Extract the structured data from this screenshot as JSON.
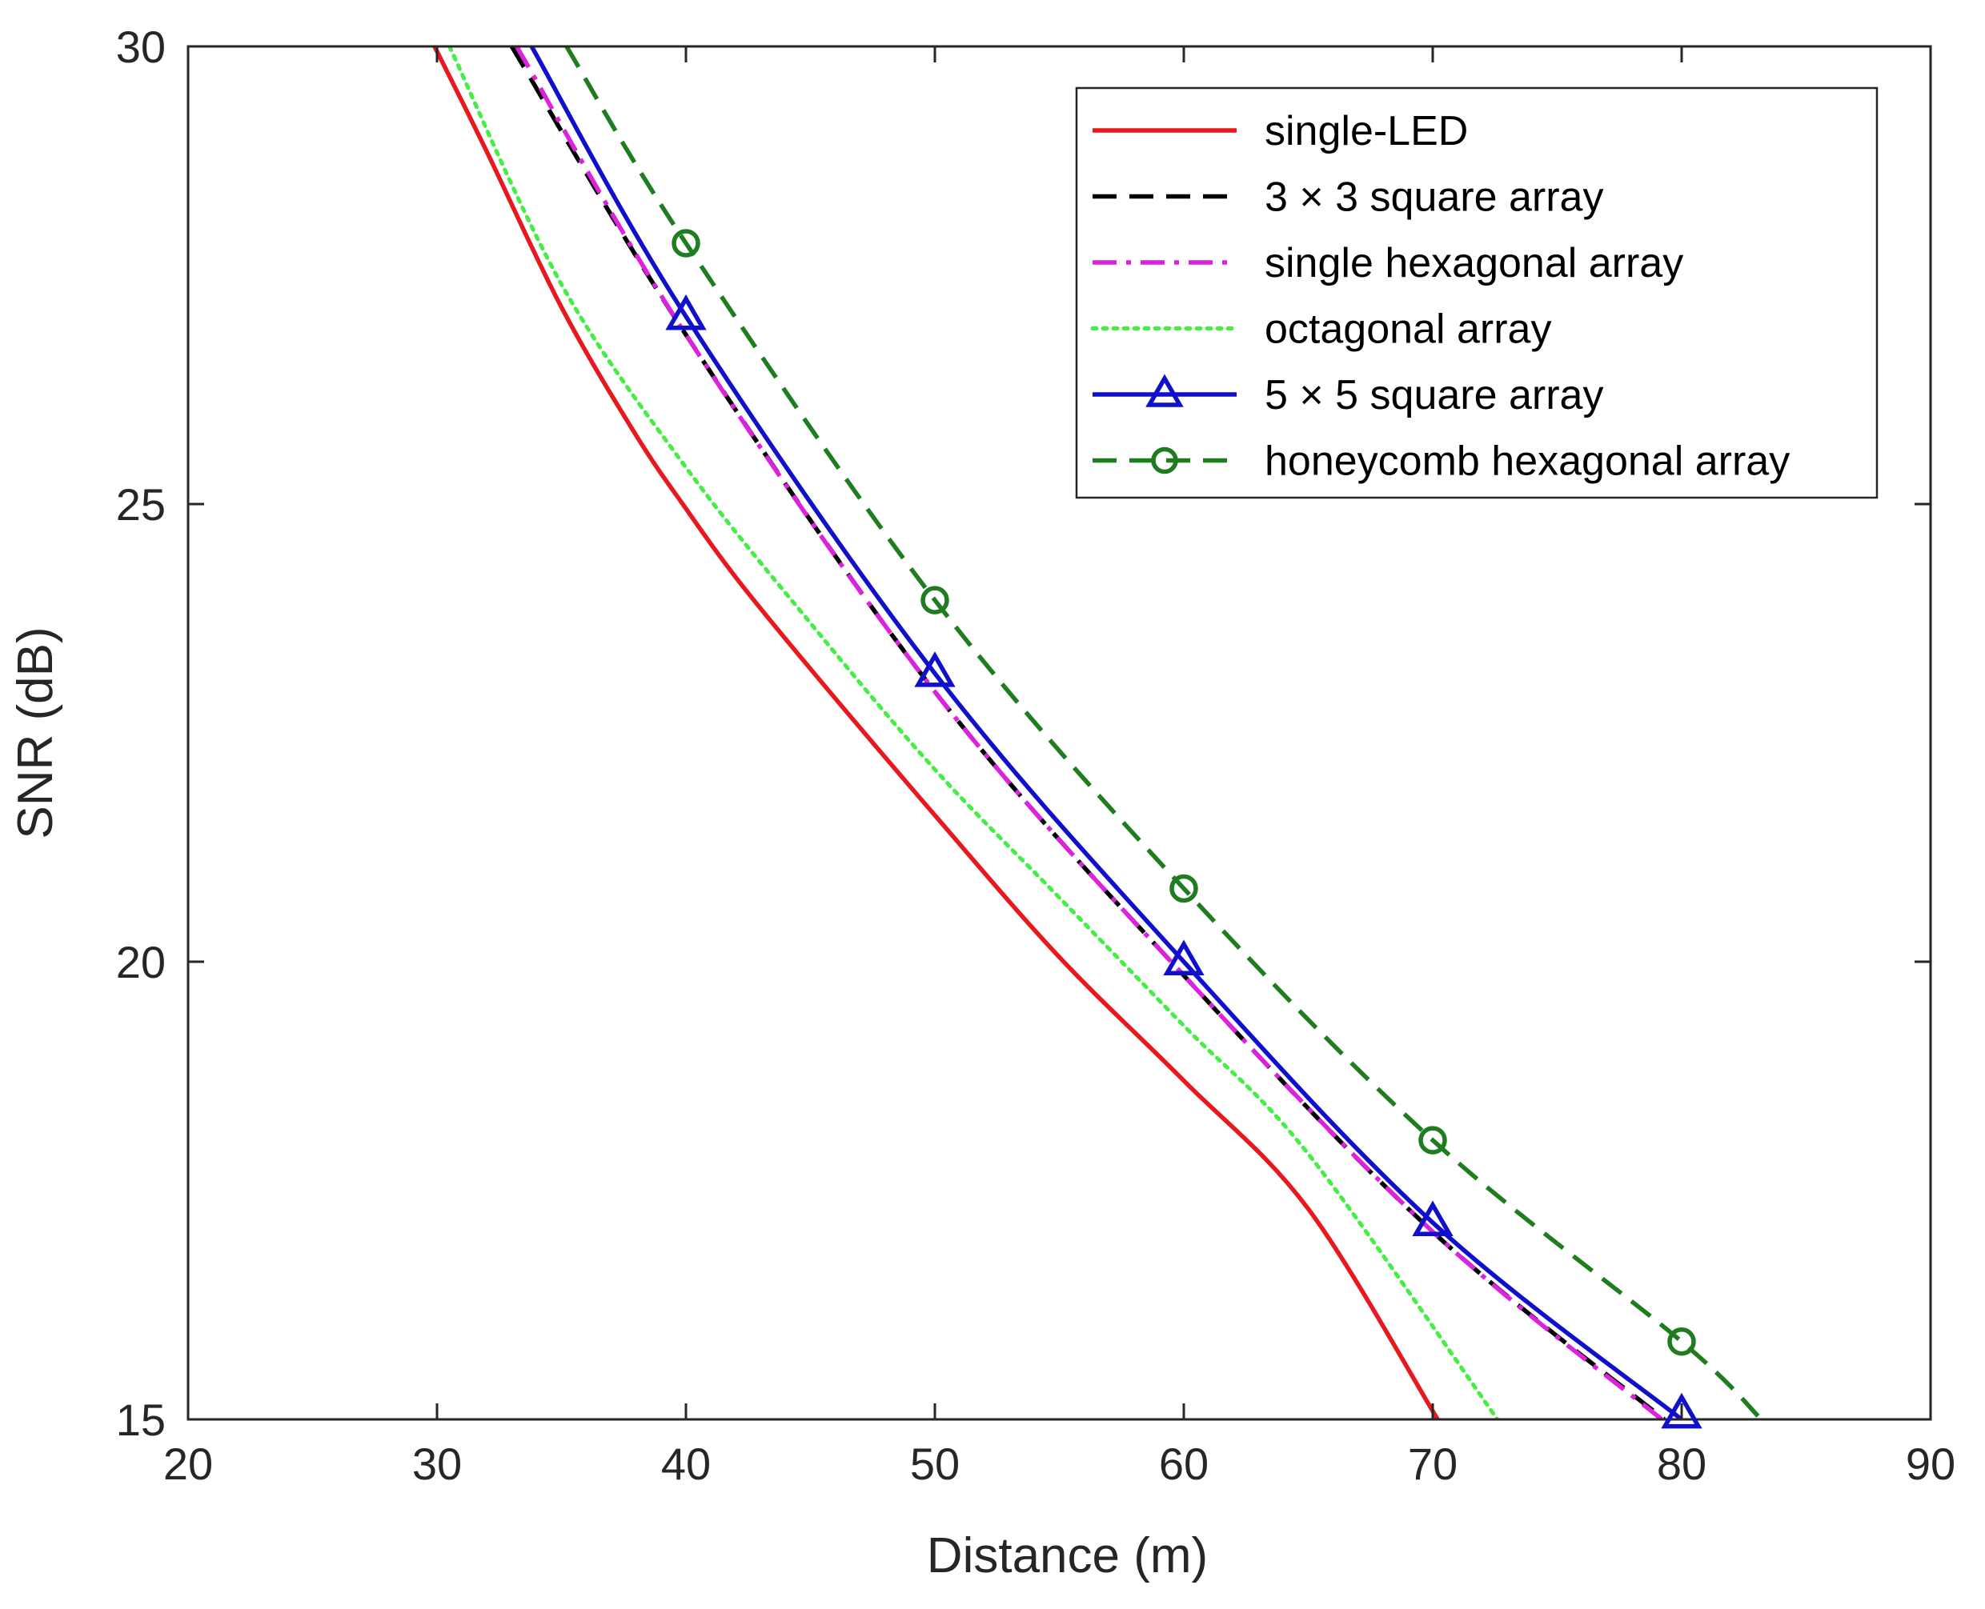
{
  "chart_data": {
    "type": "line",
    "title": "",
    "xlabel": "Distance (m)",
    "ylabel": "SNR (dB)",
    "xlim": [
      20,
      90
    ],
    "ylim": [
      15,
      30
    ],
    "xticks": [
      20,
      30,
      40,
      50,
      60,
      70,
      80,
      90
    ],
    "yticks": [
      15,
      20,
      25,
      30
    ],
    "grid": false,
    "legend_position": "top-right",
    "series": [
      {
        "name": "single-LED",
        "color": "#e8191e",
        "style": "solid",
        "marker": "none",
        "x": [
          29.9,
          32,
          35,
          38,
          40,
          42,
          45,
          50,
          55,
          60,
          65,
          70.2
        ],
        "y": [
          30,
          28.85,
          27.15,
          25.75,
          24.95,
          24.2,
          23.2,
          21.6,
          20.05,
          18.7,
          17.3,
          15
        ]
      },
      {
        "name": "3 × 3 square array",
        "color": "#000000",
        "style": "dashed",
        "marker": "none",
        "x": [
          33.0,
          40,
          50,
          60,
          70,
          79.3
        ],
        "y": [
          30,
          26.85,
          22.95,
          19.85,
          17.05,
          15
        ]
      },
      {
        "name": "single hexagonal array",
        "color": "#dd22dd",
        "style": "dashdot",
        "marker": "none",
        "x": [
          33.2,
          40,
          50,
          60,
          70,
          79.2
        ],
        "y": [
          30,
          26.85,
          22.95,
          19.85,
          17.05,
          15
        ]
      },
      {
        "name": "octagonal array",
        "color": "#44ee44",
        "style": "dotted",
        "marker": "none",
        "x": [
          30.5,
          35,
          40,
          45,
          50,
          55,
          60,
          65,
          72.6
        ],
        "y": [
          30,
          27.4,
          25.4,
          23.7,
          22.1,
          20.7,
          19.3,
          17.9,
          15
        ]
      },
      {
        "name": "5 × 5 square array",
        "color": "#1010cc",
        "style": "solid",
        "marker": "triangle",
        "x": [
          33.8,
          40,
          50,
          60,
          70,
          80
        ],
        "y": [
          30,
          27.05,
          23.15,
          20.0,
          17.15,
          15
        ]
      },
      {
        "name": "honeycomb hexagonal array",
        "color": "#1e7d1e",
        "style": "dashed",
        "marker": "circle",
        "x": [
          35.2,
          40,
          50,
          60,
          70,
          80,
          83.2
        ],
        "y": [
          30,
          27.85,
          23.95,
          20.8,
          18.05,
          15.85,
          15
        ]
      }
    ],
    "markers": {
      "5 × 5 square array": {
        "x": [
          40,
          50,
          60,
          70,
          80
        ],
        "y": [
          27.05,
          23.15,
          20.0,
          17.15,
          15.05
        ]
      },
      "honeycomb hexagonal array": {
        "x": [
          40,
          50,
          60,
          70,
          80
        ],
        "y": [
          27.85,
          23.95,
          20.8,
          18.05,
          15.85
        ]
      }
    }
  }
}
